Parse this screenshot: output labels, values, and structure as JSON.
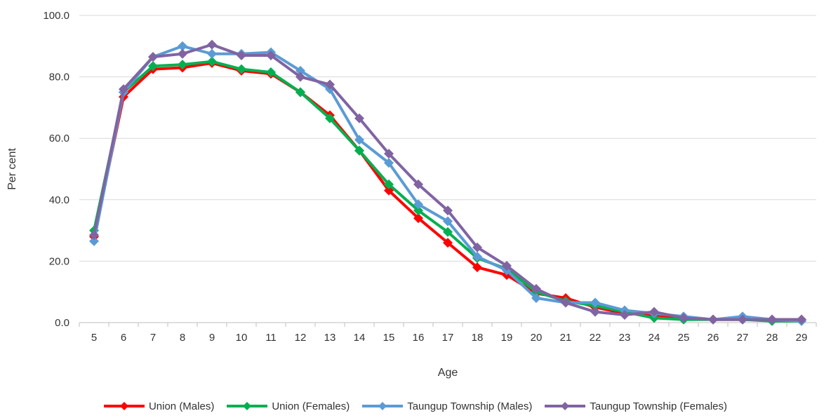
{
  "chart_data": {
    "type": "line",
    "title": "",
    "xlabel": "Age",
    "ylabel": "Per cent",
    "categories": [
      "5",
      "6",
      "7",
      "8",
      "9",
      "10",
      "11",
      "12",
      "13",
      "14",
      "15",
      "16",
      "17",
      "18",
      "19",
      "20",
      "21",
      "22",
      "23",
      "24",
      "25",
      "26",
      "27",
      "28",
      "29"
    ],
    "ylim": [
      0,
      100
    ],
    "y_ticks": [
      "0.0",
      "20.0",
      "40.0",
      "60.0",
      "80.0",
      "100.0"
    ],
    "grid": true,
    "legend_position": "bottom",
    "series": [
      {
        "name": "Union (Males)",
        "color": "#ff0000",
        "marker": "diamond",
        "values": [
          28.0,
          73.5,
          82.5,
          83.0,
          84.5,
          82.0,
          81.0,
          75.0,
          67.5,
          56.0,
          43.0,
          34.0,
          26.0,
          18.0,
          15.5,
          9.5,
          8.0,
          5.0,
          3.0,
          2.5,
          1.5,
          1.0,
          1.0,
          1.0,
          1.0
        ]
      },
      {
        "name": "Union (Females)",
        "color": "#00b050",
        "marker": "diamond",
        "values": [
          30.0,
          75.0,
          83.5,
          84.0,
          85.0,
          82.5,
          81.5,
          75.0,
          66.5,
          56.0,
          45.0,
          36.5,
          29.5,
          21.0,
          17.5,
          10.0,
          7.0,
          5.5,
          3.5,
          1.5,
          1.0,
          1.0,
          1.0,
          0.5,
          0.5
        ]
      },
      {
        "name": "Taungup Township (Males)",
        "color": "#5b9bd5",
        "marker": "diamond",
        "values": [
          26.5,
          75.0,
          86.5,
          90.0,
          87.5,
          87.5,
          88.0,
          82.0,
          76.0,
          59.5,
          52.0,
          38.5,
          33.0,
          21.5,
          17.0,
          8.0,
          6.5,
          6.5,
          4.0,
          3.0,
          2.0,
          1.0,
          2.0,
          1.0,
          0.5
        ]
      },
      {
        "name": "Taungup Township (Females)",
        "color": "#8064a2",
        "marker": "diamond",
        "values": [
          28.5,
          76.0,
          86.5,
          87.5,
          90.5,
          87.0,
          87.0,
          80.0,
          77.5,
          66.5,
          55.0,
          45.0,
          36.5,
          24.5,
          18.5,
          11.0,
          6.5,
          3.5,
          2.5,
          3.5,
          1.5,
          1.0,
          1.0,
          1.0,
          1.0
        ]
      }
    ]
  }
}
